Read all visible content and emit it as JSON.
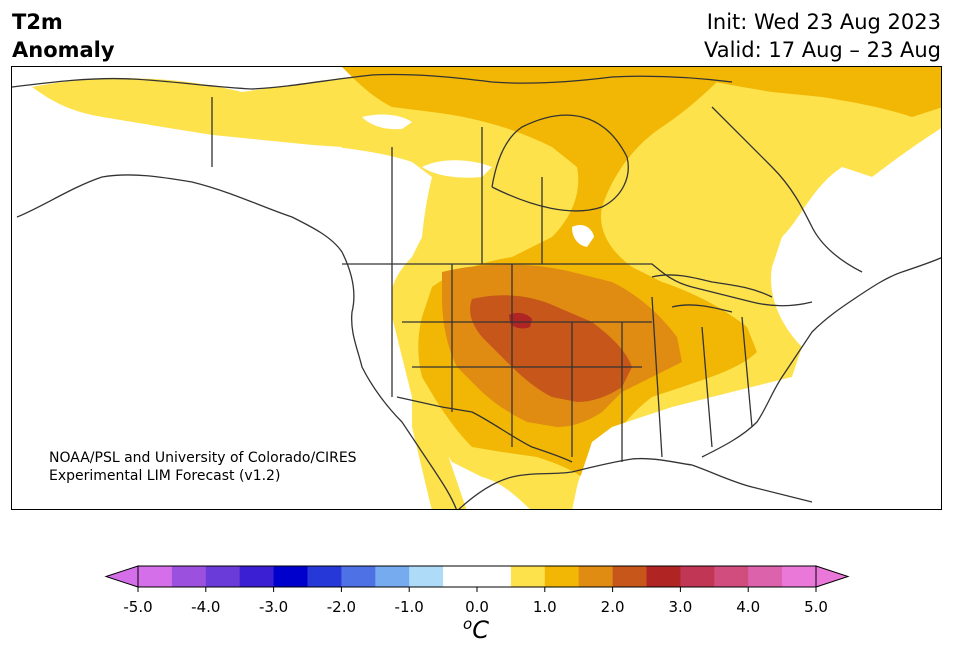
{
  "header": {
    "title_line1": "T2m",
    "title_line2": "Anomaly",
    "init": "Init: Wed 23 Aug 2023",
    "valid": "Valid: 17 Aug – 23 Aug"
  },
  "credit": {
    "line1": "NOAA/PSL and University of Colorado/CIRES",
    "line2": "Experimental LIM Forecast (v1.2)"
  },
  "colorbar": {
    "unit_base": "C",
    "unit_sup": "o",
    "ticks": [
      "-5.0",
      "-4.0",
      "-3.0",
      "-2.0",
      "-1.0",
      "0.0",
      "1.0",
      "2.0",
      "3.0",
      "4.0",
      "5.0"
    ],
    "colors": [
      "#d46ee9",
      "#9b50de",
      "#6b3bd9",
      "#3b1fd3",
      "#0000cc",
      "#2738d9",
      "#4f71e6",
      "#76acef",
      "#aedcf8",
      "#ffffff",
      "#ffffff",
      "#fde24c",
      "#f2b705",
      "#e08b12",
      "#c6561a",
      "#b02424",
      "#c13555",
      "#d04d7d",
      "#dc62ab",
      "#ea78d8"
    ],
    "extend_low_color": "#d46ee9",
    "extend_high_color": "#ea78d8"
  },
  "map": {
    "region": "North America",
    "variable": "2 m temperature anomaly",
    "max_anomaly_region": "Central Plains / Nebraska-Kansas",
    "peak_value_approx": 3.0
  }
}
